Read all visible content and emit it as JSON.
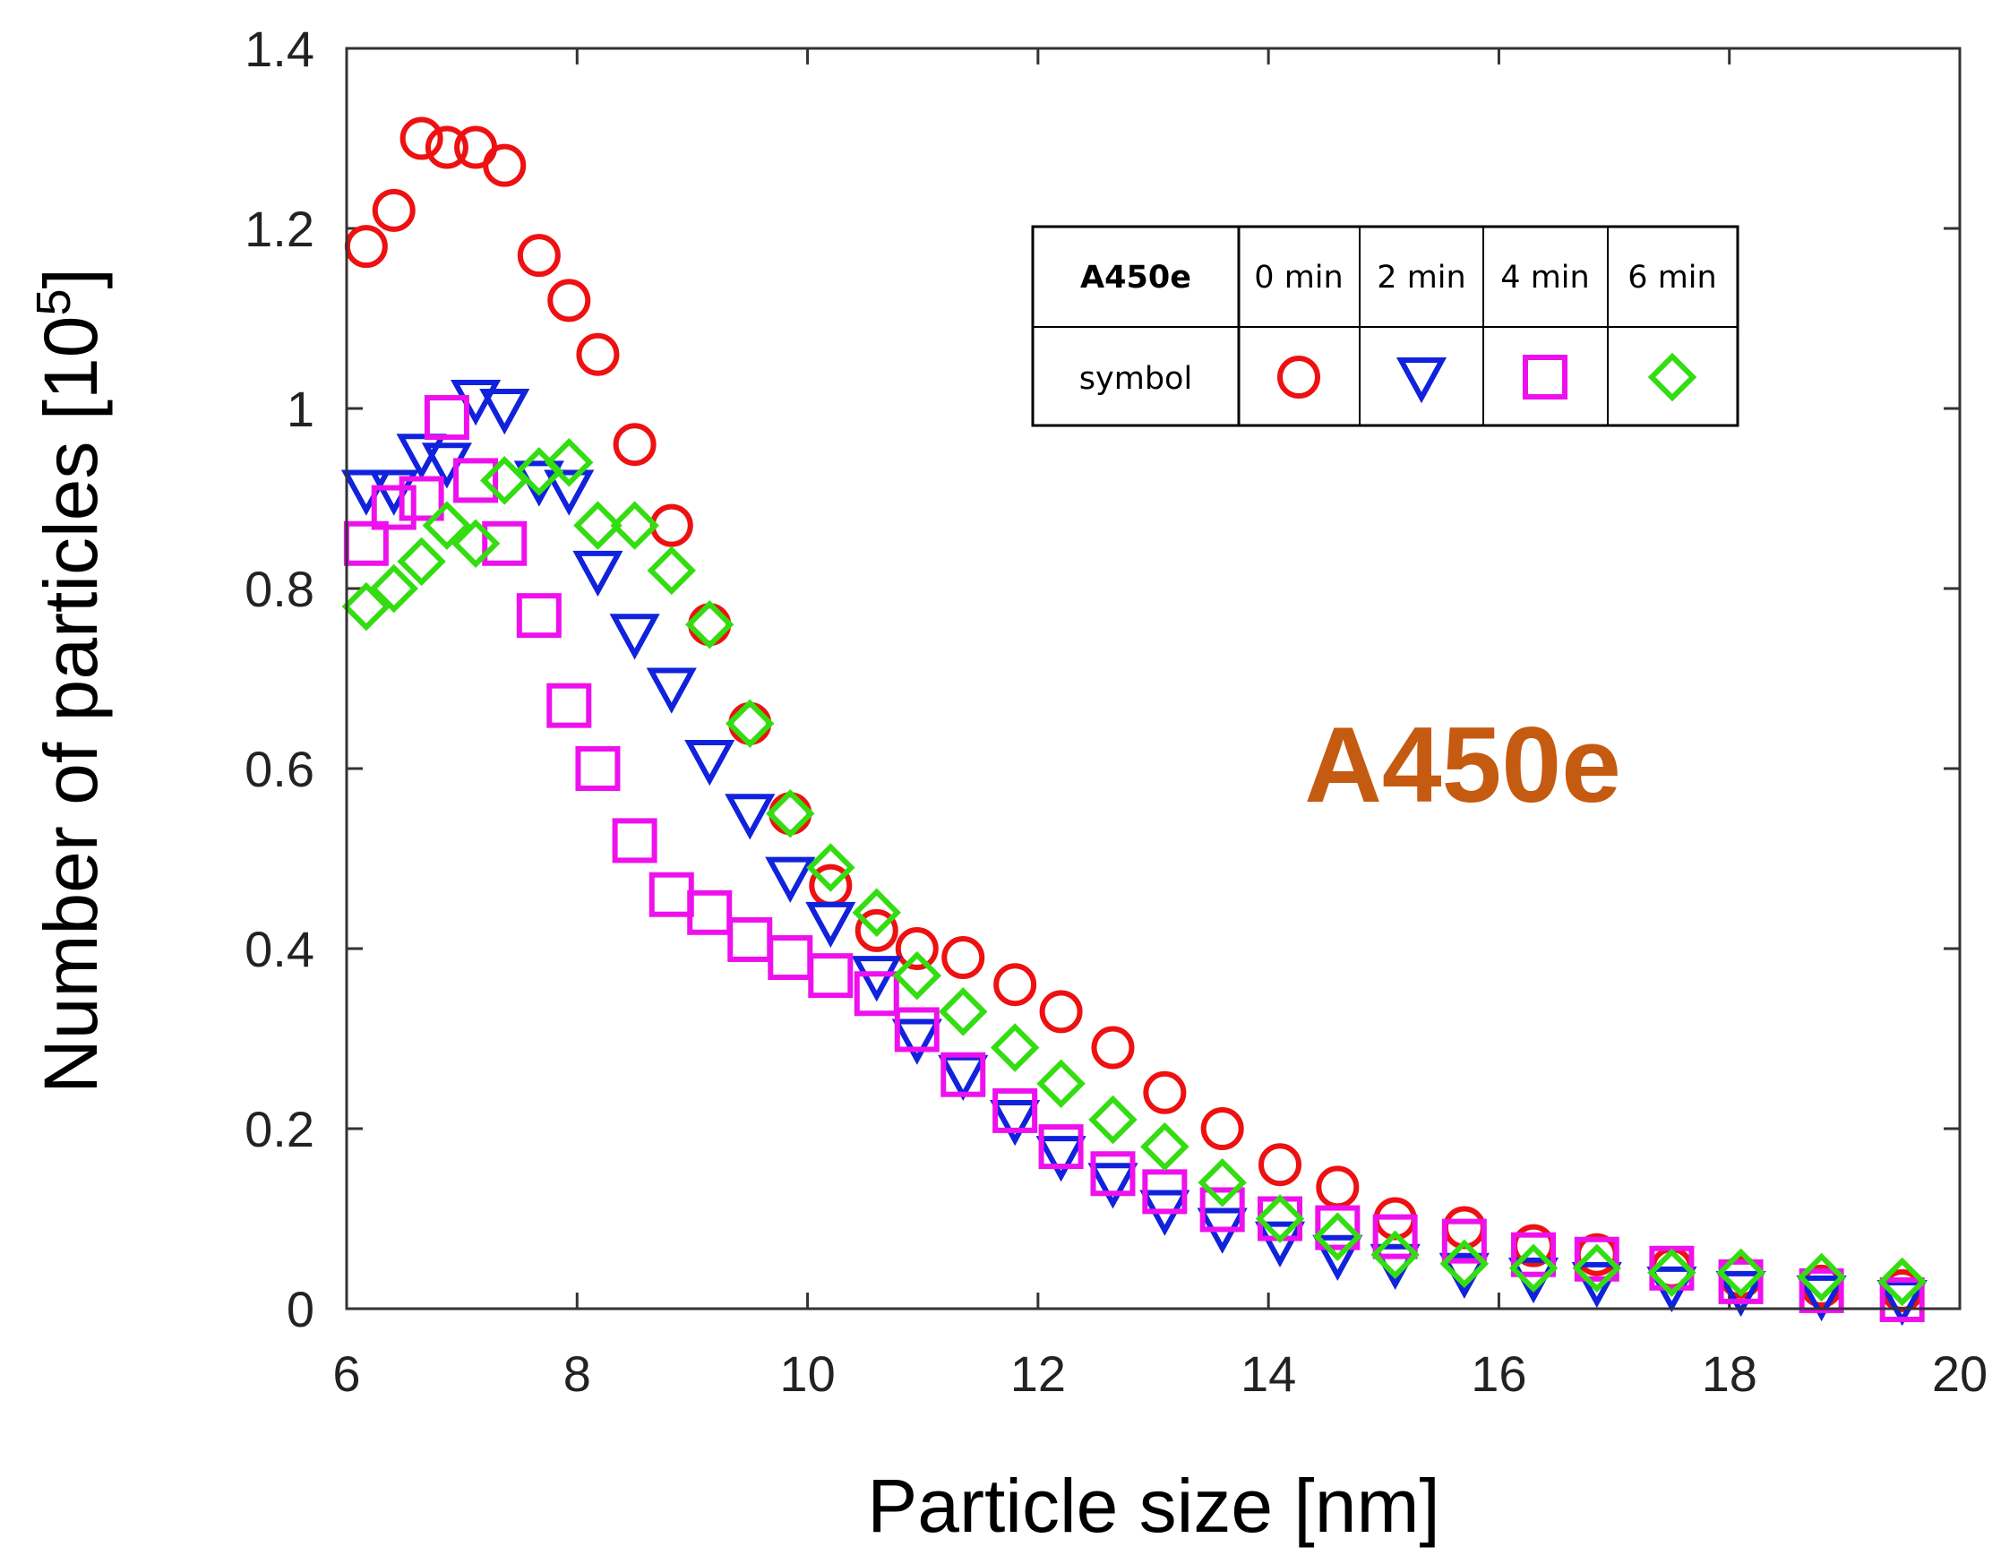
{
  "chart_data": {
    "type": "scatter",
    "title": "",
    "xlabel": "Particle size [nm]",
    "ylabel": "Number of particles [10^5]",
    "ylabel_main": "Number of particles [10",
    "ylabel_exp": "5",
    "ylabel_close": "]",
    "xlim": [
      6,
      20
    ],
    "ylim": [
      0,
      1.4
    ],
    "xticks": [
      6,
      8,
      10,
      12,
      14,
      16,
      18,
      20
    ],
    "xtick_labels": [
      "6",
      "8",
      "10",
      "12",
      "14",
      "16",
      "18",
      "20"
    ],
    "yticks": [
      0,
      0.2,
      0.4,
      0.6,
      0.8,
      1,
      1.2,
      1.4
    ],
    "ytick_labels": [
      "0",
      "0.2",
      "0.4",
      "0.6",
      "0.8",
      "1",
      "1.2",
      "1.4"
    ],
    "grid": false,
    "annotation": {
      "text": "A450e",
      "color": "#c55a11"
    },
    "legend": {
      "header": "A450e",
      "row_label": "symbol",
      "columns": [
        "0 min",
        "2 min",
        "4 min",
        "6 min"
      ]
    },
    "series": [
      {
        "name": "0 min",
        "marker": "circle",
        "color": "#ee1111",
        "x": [
          6.17,
          6.41,
          6.65,
          6.87,
          7.12,
          7.37,
          7.67,
          7.93,
          8.18,
          8.5,
          8.82,
          9.15,
          9.5,
          9.85,
          10.2,
          10.6,
          10.95,
          11.35,
          11.8,
          12.2,
          12.65,
          13.1,
          13.6,
          14.1,
          14.6,
          15.1,
          15.7,
          16.3,
          16.85,
          17.5,
          18.1,
          18.8,
          19.5
        ],
        "y": [
          1.18,
          1.22,
          1.3,
          1.29,
          1.29,
          1.27,
          1.17,
          1.12,
          1.06,
          0.96,
          0.87,
          0.76,
          0.65,
          0.55,
          0.47,
          0.42,
          0.4,
          0.39,
          0.36,
          0.33,
          0.29,
          0.24,
          0.2,
          0.16,
          0.135,
          0.1,
          0.09,
          0.07,
          0.06,
          0.045,
          0.035,
          0.025,
          0.02
        ]
      },
      {
        "name": "2 min",
        "marker": "triangle-down",
        "color": "#1122dd",
        "x": [
          6.17,
          6.41,
          6.65,
          6.87,
          7.12,
          7.37,
          7.67,
          7.93,
          8.18,
          8.5,
          8.82,
          9.15,
          9.5,
          9.85,
          10.2,
          10.6,
          10.95,
          11.35,
          11.8,
          12.2,
          12.65,
          13.1,
          13.6,
          14.1,
          14.6,
          15.1,
          15.7,
          16.3,
          16.85,
          17.5,
          18.1,
          18.8,
          19.5
        ],
        "y": [
          0.91,
          0.91,
          0.95,
          0.94,
          1.01,
          1.0,
          0.92,
          0.91,
          0.82,
          0.75,
          0.69,
          0.61,
          0.55,
          0.48,
          0.43,
          0.37,
          0.3,
          0.26,
          0.21,
          0.17,
          0.14,
          0.11,
          0.09,
          0.075,
          0.06,
          0.05,
          0.04,
          0.035,
          0.03,
          0.025,
          0.02,
          0.015,
          0.01
        ]
      },
      {
        "name": "4 min",
        "marker": "square",
        "color": "#ee11ee",
        "x": [
          6.17,
          6.41,
          6.65,
          6.87,
          7.12,
          7.37,
          7.67,
          7.93,
          8.18,
          8.5,
          8.82,
          9.15,
          9.5,
          9.85,
          10.2,
          10.6,
          10.95,
          11.35,
          11.8,
          12.2,
          12.65,
          13.1,
          13.6,
          14.1,
          14.6,
          15.1,
          15.7,
          16.3,
          16.85,
          17.5,
          18.1,
          18.8,
          19.5
        ],
        "y": [
          0.85,
          0.89,
          0.9,
          0.99,
          0.92,
          0.85,
          0.77,
          0.67,
          0.6,
          0.52,
          0.46,
          0.44,
          0.41,
          0.39,
          0.37,
          0.35,
          0.31,
          0.26,
          0.22,
          0.18,
          0.15,
          0.13,
          0.11,
          0.1,
          0.09,
          0.08,
          0.075,
          0.06,
          0.055,
          0.045,
          0.03,
          0.02,
          0.01
        ]
      },
      {
        "name": "6 min",
        "marker": "diamond",
        "color": "#33dd11",
        "x": [
          6.17,
          6.41,
          6.65,
          6.87,
          7.12,
          7.37,
          7.67,
          7.93,
          8.18,
          8.5,
          8.82,
          9.15,
          9.5,
          9.85,
          10.2,
          10.6,
          10.95,
          11.35,
          11.8,
          12.2,
          12.65,
          13.1,
          13.6,
          14.1,
          14.6,
          15.1,
          15.7,
          16.3,
          16.85,
          17.5,
          18.1,
          18.8,
          19.5
        ],
        "y": [
          0.78,
          0.8,
          0.83,
          0.87,
          0.85,
          0.92,
          0.93,
          0.94,
          0.87,
          0.87,
          0.82,
          0.76,
          0.65,
          0.55,
          0.49,
          0.44,
          0.37,
          0.33,
          0.29,
          0.25,
          0.21,
          0.18,
          0.14,
          0.1,
          0.08,
          0.06,
          0.05,
          0.045,
          0.045,
          0.04,
          0.04,
          0.035,
          0.03
        ]
      }
    ]
  }
}
